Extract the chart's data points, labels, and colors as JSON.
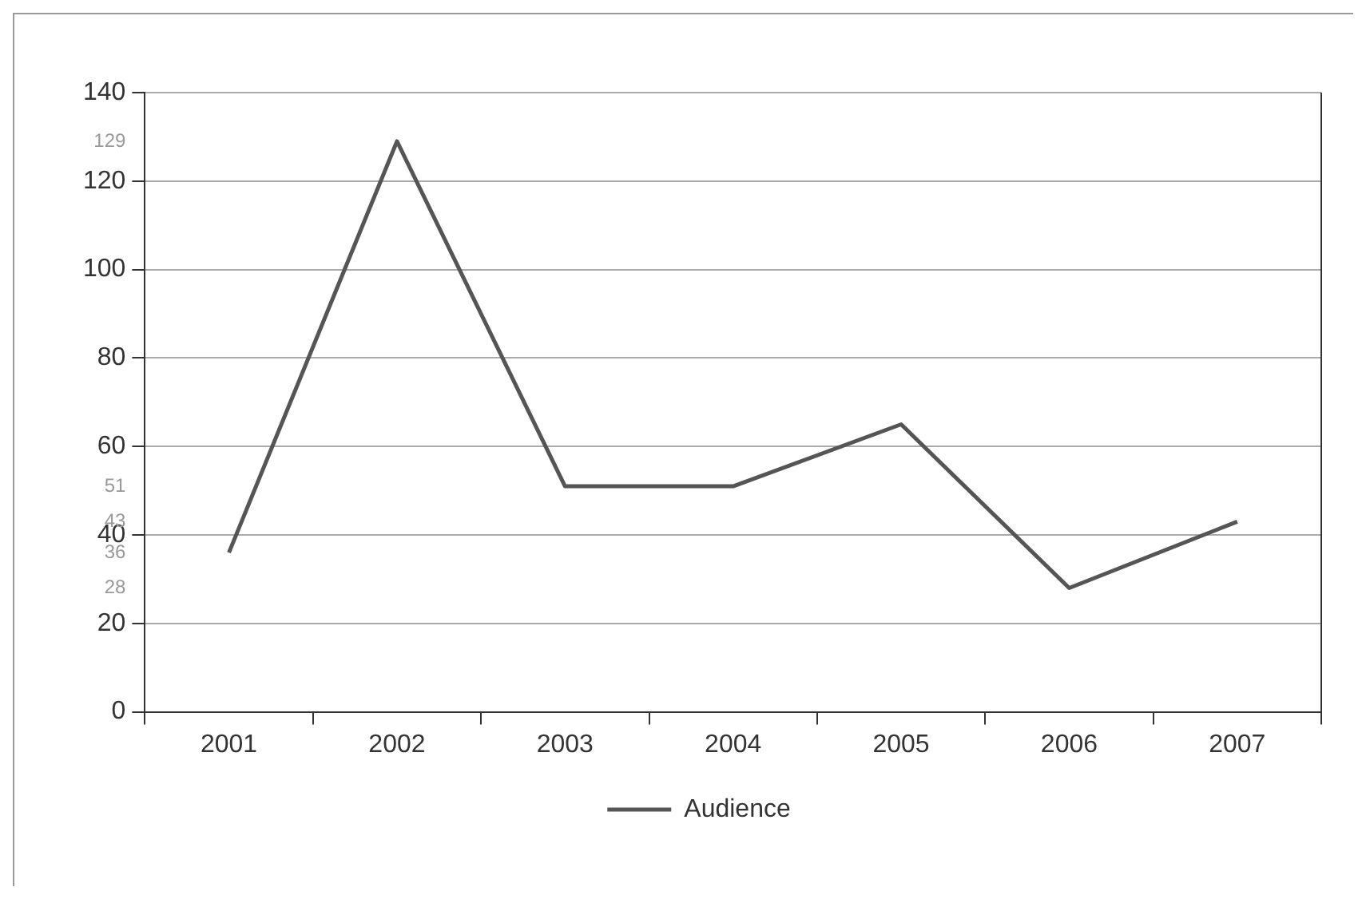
{
  "chart_data": {
    "type": "line",
    "categories": [
      "2001",
      "2002",
      "2003",
      "2004",
      "2005",
      "2006",
      "2007"
    ],
    "series": [
      {
        "name": "Audience",
        "color": "#555555",
        "values": [
          36,
          129,
          51,
          51,
          65,
          28,
          43
        ]
      }
    ],
    "ylim": [
      0,
      140
    ],
    "yticks": [
      0,
      20,
      {
        "value": 28,
        "label": "28"
      },
      {
        "value": 36,
        "label": "36"
      },
      40,
      {
        "value": 43,
        "label": "43"
      },
      {
        "value": 51,
        "label": "51"
      },
      60,
      80,
      100,
      120,
      {
        "value": 129,
        "label": "129"
      },
      140
    ],
    "grid": "y",
    "legend": "bottom",
    "marker": "none",
    "line_style": "solid"
  }
}
